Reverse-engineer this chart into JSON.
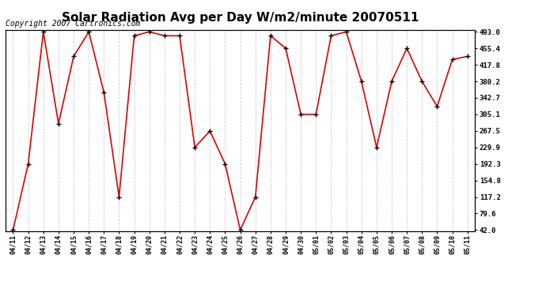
{
  "title": "Solar Radiation Avg per Day W/m2/minute 20070511",
  "copyright": "Copyright 2007 Cartronics.com",
  "labels": [
    "04/11",
    "04/12",
    "04/13",
    "04/14",
    "04/15",
    "04/16",
    "04/17",
    "04/18",
    "04/19",
    "04/20",
    "04/21",
    "04/22",
    "04/23",
    "04/24",
    "04/25",
    "04/26",
    "04/27",
    "04/28",
    "04/29",
    "04/30",
    "05/01",
    "05/02",
    "05/03",
    "05/04",
    "05/05",
    "05/06",
    "05/07",
    "05/08",
    "05/09",
    "05/10",
    "05/11"
  ],
  "values": [
    42.0,
    192.3,
    493.0,
    284.0,
    437.0,
    493.0,
    355.0,
    117.2,
    484.0,
    493.0,
    484.0,
    484.0,
    229.9,
    267.5,
    192.3,
    42.0,
    117.2,
    484.0,
    455.4,
    305.1,
    305.1,
    484.0,
    493.0,
    380.2,
    229.9,
    380.2,
    455.4,
    380.2,
    323.0,
    430.0,
    437.0
  ],
  "line_color": "#dd0000",
  "marker_color": "#000000",
  "bg_color": "#ffffff",
  "grid_color": "#cccccc",
  "yticks": [
    42.0,
    79.6,
    117.2,
    154.8,
    192.3,
    229.9,
    267.5,
    305.1,
    342.7,
    380.2,
    417.8,
    455.4,
    493.0
  ],
  "ymin": 42.0,
  "ymax": 493.0,
  "title_fontsize": 11,
  "copyright_fontsize": 7
}
